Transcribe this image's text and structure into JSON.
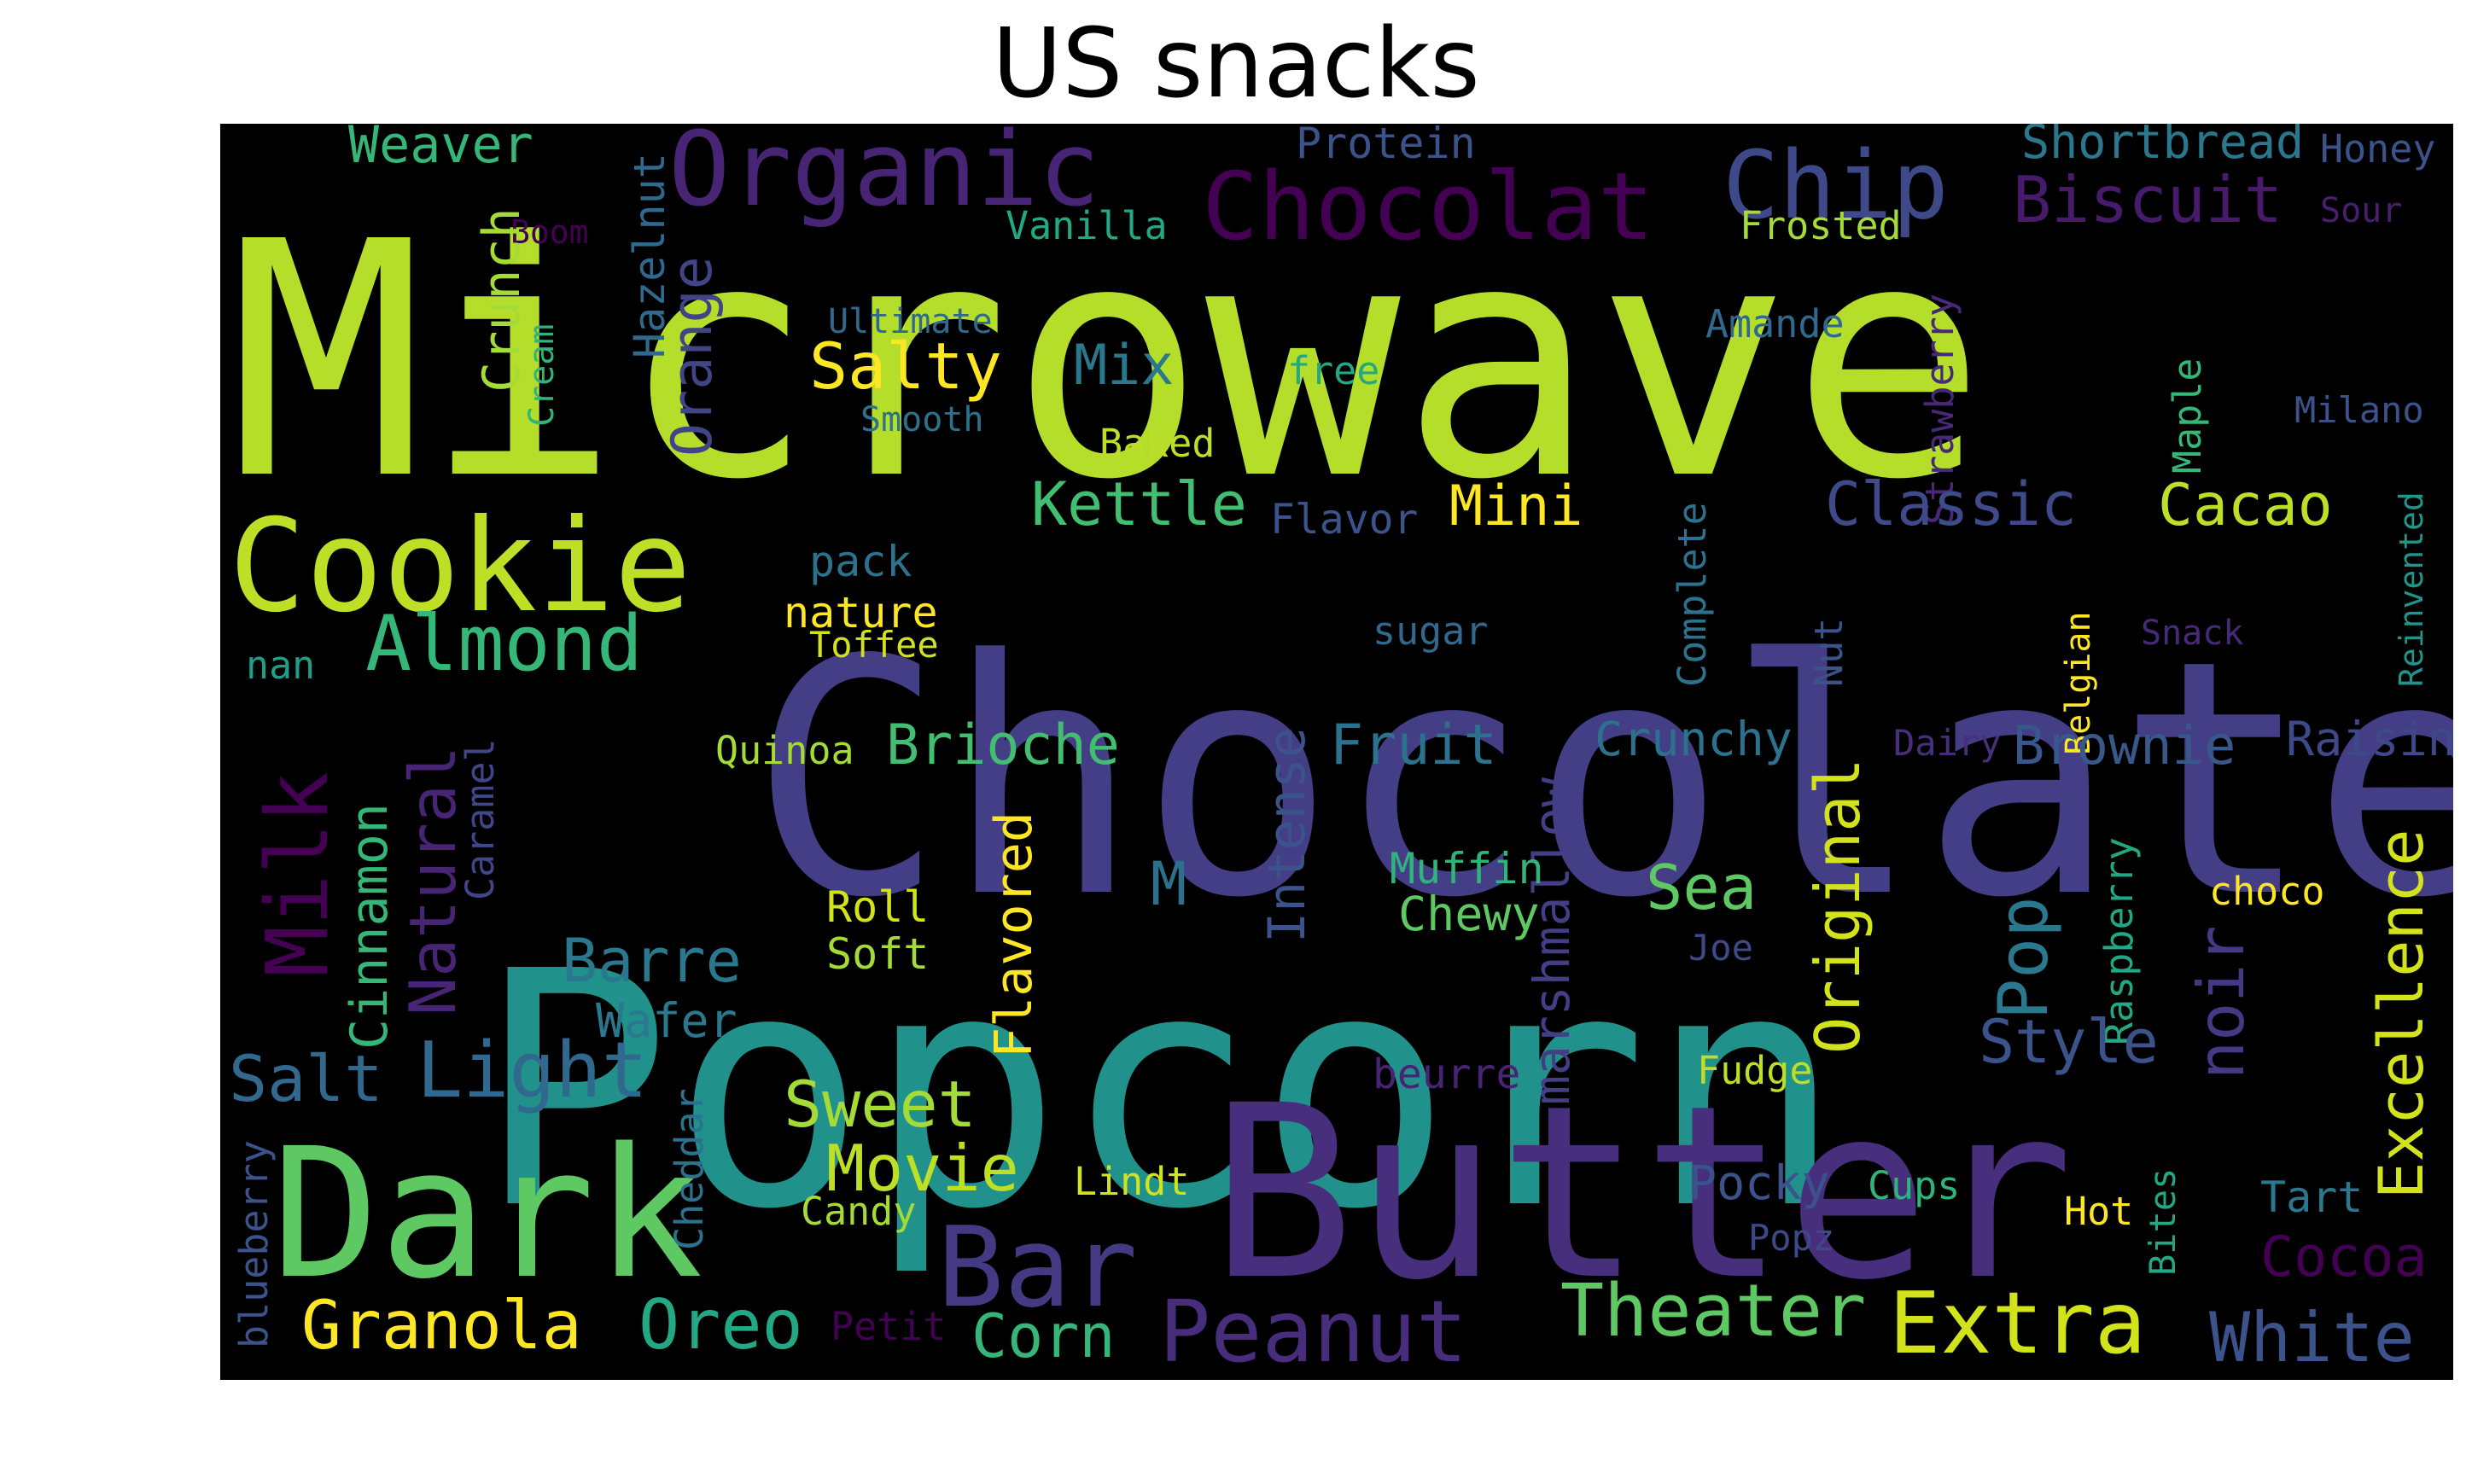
{
  "title": "US snacks",
  "background_color": "#000000",
  "words": [
    {
      "text": "Microwave",
      "color": "#b5de2b"
    },
    {
      "text": "Chocolate",
      "color": "#433e85"
    },
    {
      "text": "Popcorn",
      "color": "#21918c"
    },
    {
      "text": "Butter",
      "color": "#472f7d"
    },
    {
      "text": "Dark",
      "color": "#5ec962"
    },
    {
      "text": "Cookie",
      "color": "#bddf26"
    },
    {
      "text": "Organic",
      "color": "#482475"
    },
    {
      "text": "Chocolat",
      "color": "#440154"
    },
    {
      "text": "Chip",
      "color": "#3e4989"
    },
    {
      "text": "Biscuit",
      "color": "#481a6c"
    },
    {
      "text": "Shortbread",
      "color": "#2a788e"
    },
    {
      "text": "Honey",
      "color": "#3b528b"
    },
    {
      "text": "Weaver",
      "color": "#35b779"
    },
    {
      "text": "Hazelnut",
      "color": "#31688e"
    },
    {
      "text": "Protein",
      "color": "#3b528b"
    },
    {
      "text": "Vanilla",
      "color": "#22a884"
    },
    {
      "text": "Frosted",
      "color": "#a5db36"
    },
    {
      "text": "Sour",
      "color": "#481f70"
    },
    {
      "text": "Boom",
      "color": "#440154"
    },
    {
      "text": "Crunch",
      "color": "#a5db36"
    },
    {
      "text": "Cream",
      "color": "#2fb47c"
    },
    {
      "text": "Orange",
      "color": "#414487"
    },
    {
      "text": "Ultimate",
      "color": "#31688e"
    },
    {
      "text": "Amande",
      "color": "#31688e"
    },
    {
      "text": "Strawberry",
      "color": "#482878"
    },
    {
      "text": "Salty",
      "color": "#fde725"
    },
    {
      "text": "Mix",
      "color": "#2a788e"
    },
    {
      "text": "free",
      "color": "#22a884"
    },
    {
      "text": "Smooth",
      "color": "#2c728e"
    },
    {
      "text": "Baked",
      "color": "#bddf26"
    },
    {
      "text": "Maple",
      "color": "#35b779"
    },
    {
      "text": "Milano",
      "color": "#3b528b"
    },
    {
      "text": "Kettle",
      "color": "#42be71"
    },
    {
      "text": "Flavor",
      "color": "#3b528b"
    },
    {
      "text": "Mini",
      "color": "#fde725"
    },
    {
      "text": "Complete",
      "color": "#2c728e"
    },
    {
      "text": "Classic",
      "color": "#3e4a89"
    },
    {
      "text": "Cacao",
      "color": "#bddf26"
    },
    {
      "text": "Reinvented",
      "color": "#1f968b"
    },
    {
      "text": "pack",
      "color": "#2c728e"
    },
    {
      "text": "nature",
      "color": "#fde725"
    },
    {
      "text": "Toffee",
      "color": "#d2e21b"
    },
    {
      "text": "sugar",
      "color": "#31688e"
    },
    {
      "text": "Nut",
      "color": "#3b528b"
    },
    {
      "text": "Snack",
      "color": "#482878"
    },
    {
      "text": "Almond",
      "color": "#35b779"
    },
    {
      "text": "nan",
      "color": "#1f9e89"
    },
    {
      "text": "Belgian",
      "color": "#fde725"
    },
    {
      "text": "Milk",
      "color": "#440154"
    },
    {
      "text": "Natural",
      "color": "#482475"
    },
    {
      "text": "Caramel",
      "color": "#404688"
    },
    {
      "text": "Cinnamon",
      "color": "#35b779"
    },
    {
      "text": "Quinoa",
      "color": "#a5db36"
    },
    {
      "text": "Brioche",
      "color": "#42be71"
    },
    {
      "text": "Intense",
      "color": "#3b528b"
    },
    {
      "text": "Fruit",
      "color": "#2c728e"
    },
    {
      "text": "marshmallow",
      "color": "#433e85"
    },
    {
      "text": "Crunchy",
      "color": "#2c728e"
    },
    {
      "text": "Dairy",
      "color": "#472f7d"
    },
    {
      "text": "Brownie",
      "color": "#38588c"
    },
    {
      "text": "Raisin",
      "color": "#3e4989"
    },
    {
      "text": "Excellence",
      "color": "#d2e21b"
    },
    {
      "text": "M",
      "color": "#2d708e"
    },
    {
      "text": "Muffin",
      "color": "#2fb47c"
    },
    {
      "text": "Chewy",
      "color": "#5ec962"
    },
    {
      "text": "Sea",
      "color": "#5ec962"
    },
    {
      "text": "Original",
      "color": "#d2e21b"
    },
    {
      "text": "Raspberry",
      "color": "#22a884"
    },
    {
      "text": "choco",
      "color": "#fde725"
    },
    {
      "text": "Roll",
      "color": "#d2e21b"
    },
    {
      "text": "Soft",
      "color": "#a5db36"
    },
    {
      "text": "Flavored",
      "color": "#fde725"
    },
    {
      "text": "Joe",
      "color": "#3e4989"
    },
    {
      "text": "Pop",
      "color": "#2a788e"
    },
    {
      "text": "noir",
      "color": "#443983"
    },
    {
      "text": "Barre",
      "color": "#2a788e"
    },
    {
      "text": "Wafer",
      "color": "#2a788e"
    },
    {
      "text": "Style",
      "color": "#3b528b"
    },
    {
      "text": "Salt",
      "color": "#31688e"
    },
    {
      "text": "Light",
      "color": "#31688e"
    },
    {
      "text": "beurre",
      "color": "#482475"
    },
    {
      "text": "Fudge",
      "color": "#bddf26"
    },
    {
      "text": "Sweet",
      "color": "#a5db36"
    },
    {
      "text": "Movie",
      "color": "#bddf26"
    },
    {
      "text": "blueberry",
      "color": "#3b528b"
    },
    {
      "text": "Cheddar",
      "color": "#2c728e"
    },
    {
      "text": "Lindt",
      "color": "#d2e21b"
    },
    {
      "text": "Candy",
      "color": "#a5db36"
    },
    {
      "text": "Bar",
      "color": "#443983"
    },
    {
      "text": "Pocky",
      "color": "#3b528b"
    },
    {
      "text": "Cups",
      "color": "#2fb47c"
    },
    {
      "text": "Bites",
      "color": "#22a884"
    },
    {
      "text": "Tart",
      "color": "#2a788e"
    },
    {
      "text": "Hot",
      "color": "#fde725"
    },
    {
      "text": "Popz",
      "color": "#3e4989"
    },
    {
      "text": "Cocoa",
      "color": "#440154"
    },
    {
      "text": "Granola",
      "color": "#fde725"
    },
    {
      "text": "Oreo",
      "color": "#22a884"
    },
    {
      "text": "Petit",
      "color": "#440154"
    },
    {
      "text": "Corn",
      "color": "#35b779"
    },
    {
      "text": "Peanut",
      "color": "#472d7b"
    },
    {
      "text": "Theater",
      "color": "#5ec962"
    },
    {
      "text": "Extra",
      "color": "#d2e21b"
    },
    {
      "text": "White",
      "color": "#3b528b"
    }
  ]
}
